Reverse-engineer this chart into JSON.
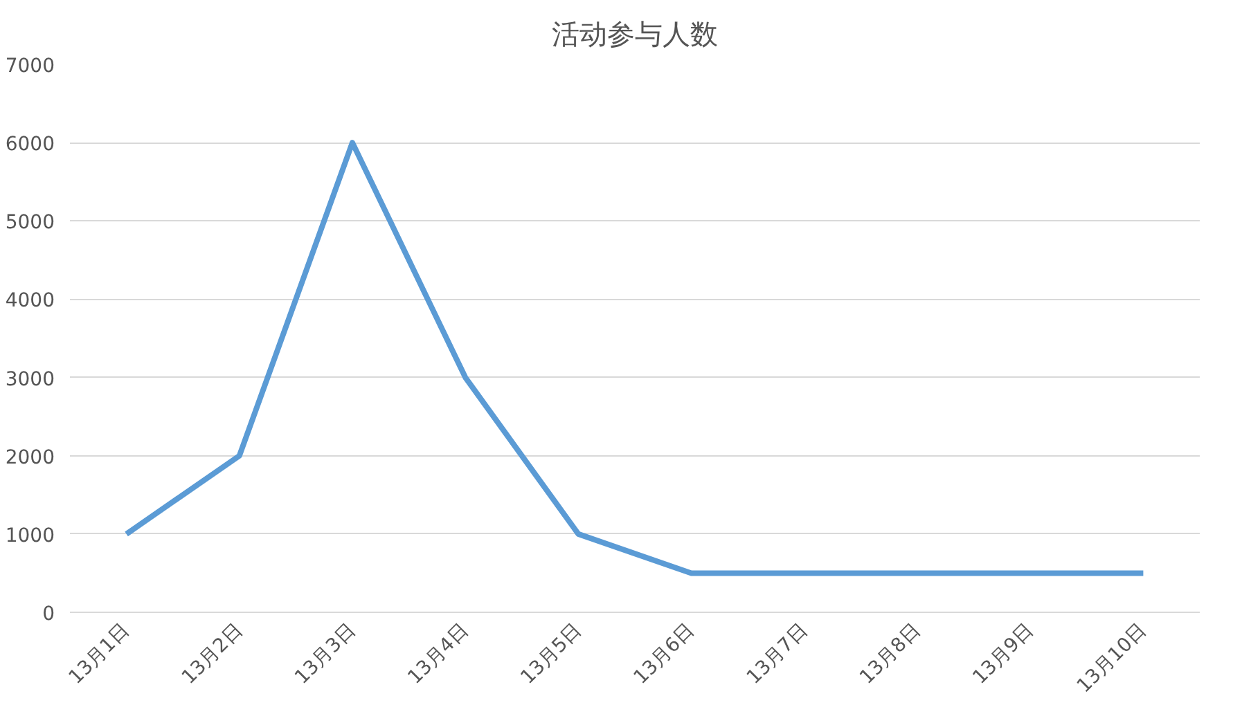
{
  "chart_data": {
    "type": "line",
    "title": "活动参与人数",
    "categories": [
      "13月1日",
      "13月2日",
      "13月3日",
      "13月4日",
      "13月5日",
      "13月6日",
      "13月7日",
      "13月8日",
      "13月9日",
      "13月10日"
    ],
    "series": [
      {
        "color": "#5b9bd5",
        "values": [
          1000,
          2000,
          6000,
          3000,
          1000,
          500,
          500,
          500,
          500,
          500
        ]
      }
    ],
    "ylim": [
      0,
      7000
    ],
    "yticks": [
      0,
      1000,
      2000,
      3000,
      4000,
      5000,
      6000,
      7000
    ],
    "grid": "y",
    "marker": "none",
    "line_style": "solid"
  }
}
